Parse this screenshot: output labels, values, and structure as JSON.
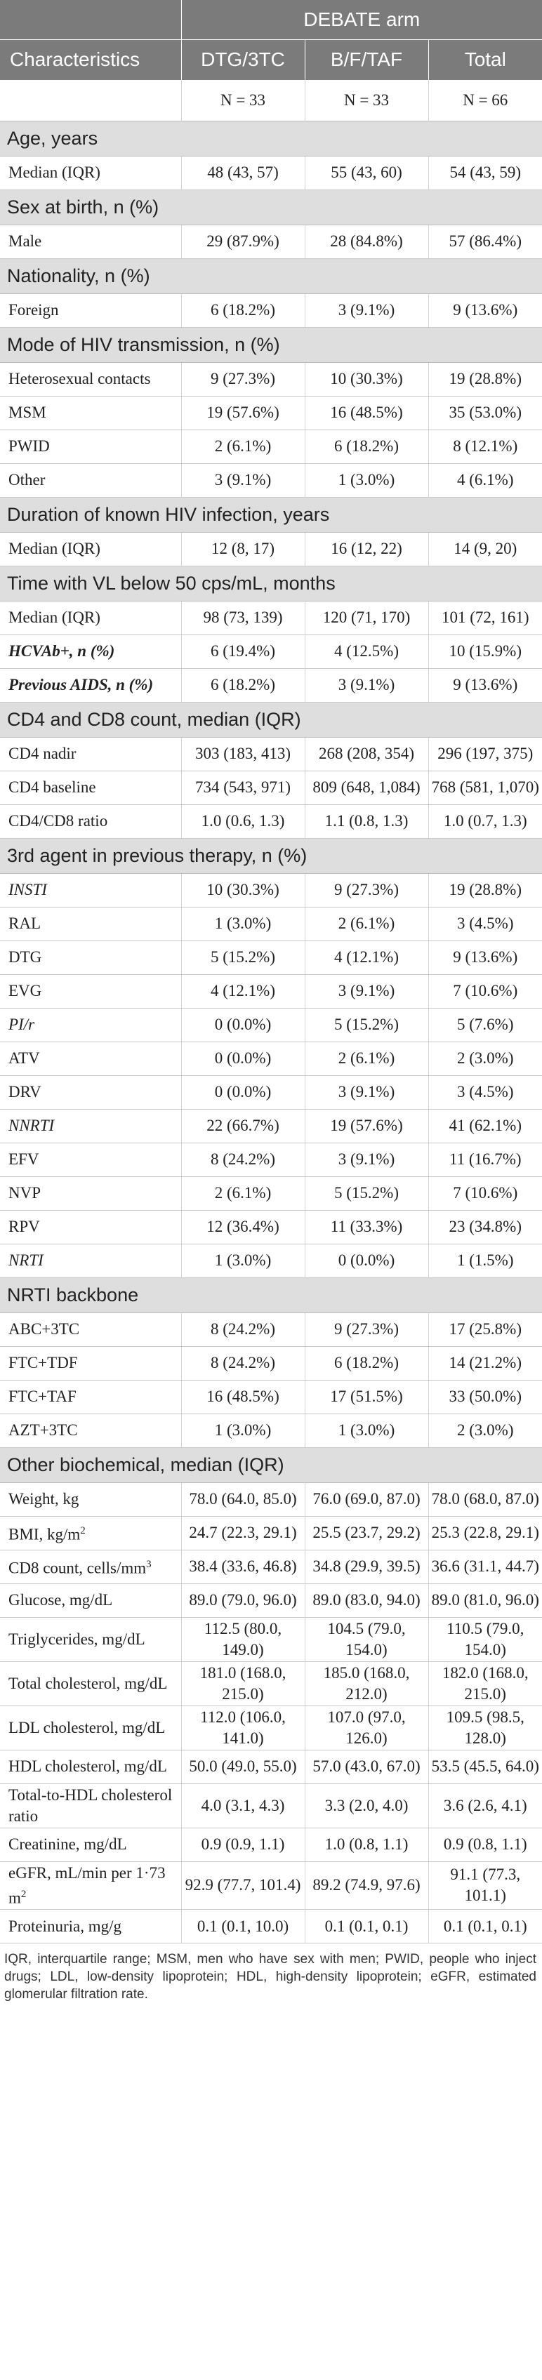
{
  "header": {
    "arm_label": "DEBATE arm",
    "col_characteristics": "Characteristics",
    "col_dtg": "DTG/3TC",
    "col_bf": "B/F/TAF",
    "col_total": "Total",
    "n_dtg": "N = 33",
    "n_bf": "N = 33",
    "n_total": "N = 66"
  },
  "sections": [
    {
      "title": "Age, years",
      "rows": [
        {
          "label": "Median (IQR)",
          "style": "normal",
          "v": [
            "48 (43, 57)",
            "55 (43, 60)",
            "54 (43, 59)"
          ]
        }
      ]
    },
    {
      "title": "Sex at birth, n (%)",
      "rows": [
        {
          "label": "Male",
          "style": "normal",
          "v": [
            "29 (87.9%)",
            "28 (84.8%)",
            "57 (86.4%)"
          ]
        }
      ]
    },
    {
      "title": "Nationality, n (%)",
      "rows": [
        {
          "label": "Foreign",
          "style": "normal",
          "v": [
            "6 (18.2%)",
            "3 (9.1%)",
            "9 (13.6%)"
          ]
        }
      ]
    },
    {
      "title": "Mode of HIV transmission, n (%)",
      "rows": [
        {
          "label": "Heterosexual contacts",
          "style": "normal",
          "v": [
            "9 (27.3%)",
            "10 (30.3%)",
            "19 (28.8%)"
          ]
        },
        {
          "label": "MSM",
          "style": "normal",
          "v": [
            "19 (57.6%)",
            "16 (48.5%)",
            "35 (53.0%)"
          ]
        },
        {
          "label": "PWID",
          "style": "normal",
          "v": [
            "2 (6.1%)",
            "6 (18.2%)",
            "8 (12.1%)"
          ]
        },
        {
          "label": "Other",
          "style": "normal",
          "v": [
            "3 (9.1%)",
            "1 (3.0%)",
            "4 (6.1%)"
          ]
        }
      ]
    },
    {
      "title": "Duration of known HIV infection, years",
      "rows": [
        {
          "label": "Median (IQR)",
          "style": "normal",
          "v": [
            "12 (8, 17)",
            "16 (12, 22)",
            "14 (9, 20)"
          ]
        }
      ]
    },
    {
      "title": "Time with VL below 50 cps/mL, months",
      "rows": [
        {
          "label": "Median (IQR)",
          "style": "normal",
          "v": [
            "98 (73, 139)",
            "120 (71, 170)",
            "101 (72, 161)"
          ]
        },
        {
          "label": "HCVAb+, n (%)",
          "style": "bi",
          "v": [
            "6 (19.4%)",
            "4 (12.5%)",
            "10 (15.9%)"
          ]
        },
        {
          "label": "Previous AIDS, n (%)",
          "style": "bi",
          "v": [
            "6 (18.2%)",
            "3 (9.1%)",
            "9 (13.6%)"
          ]
        }
      ]
    },
    {
      "title": "CD4 and CD8 count, median (IQR)",
      "rows": [
        {
          "label": "CD4 nadir",
          "style": "normal",
          "v": [
            "303 (183, 413)",
            "268 (208, 354)",
            "296 (197, 375)"
          ]
        },
        {
          "label": "CD4 baseline",
          "style": "normal",
          "v": [
            "734 (543, 971)",
            "809 (648, 1,084)",
            "768 (581, 1,070)"
          ]
        },
        {
          "label": "CD4/CD8 ratio",
          "style": "normal",
          "v": [
            "1.0 (0.6, 1.3)",
            "1.1 (0.8, 1.3)",
            "1.0 (0.7, 1.3)"
          ]
        }
      ]
    },
    {
      "title": "3rd agent in previous therapy, n (%)",
      "rows": [
        {
          "label": "INSTI",
          "style": "it",
          "v": [
            "10 (30.3%)",
            "9 (27.3%)",
            "19 (28.8%)"
          ]
        },
        {
          "label": "RAL",
          "style": "normal",
          "v": [
            "1 (3.0%)",
            "2 (6.1%)",
            "3 (4.5%)"
          ]
        },
        {
          "label": "DTG",
          "style": "normal",
          "v": [
            "5 (15.2%)",
            "4 (12.1%)",
            "9 (13.6%)"
          ]
        },
        {
          "label": "EVG",
          "style": "normal",
          "v": [
            "4 (12.1%)",
            "3 (9.1%)",
            "7 (10.6%)"
          ]
        },
        {
          "label": "PI/r",
          "style": "it",
          "v": [
            "0 (0.0%)",
            "5 (15.2%)",
            "5 (7.6%)"
          ]
        },
        {
          "label": "ATV",
          "style": "normal",
          "v": [
            "0 (0.0%)",
            "2 (6.1%)",
            "2 (3.0%)"
          ]
        },
        {
          "label": "DRV",
          "style": "normal",
          "v": [
            "0 (0.0%)",
            "3 (9.1%)",
            "3 (4.5%)"
          ]
        },
        {
          "label": "NNRTI",
          "style": "it",
          "v": [
            "22 (66.7%)",
            "19 (57.6%)",
            "41 (62.1%)"
          ]
        },
        {
          "label": "EFV",
          "style": "normal",
          "v": [
            "8 (24.2%)",
            "3 (9.1%)",
            "11 (16.7%)"
          ]
        },
        {
          "label": "NVP",
          "style": "normal",
          "v": [
            "2 (6.1%)",
            "5 (15.2%)",
            "7 (10.6%)"
          ]
        },
        {
          "label": "RPV",
          "style": "normal",
          "v": [
            "12 (36.4%)",
            "11 (33.3%)",
            "23 (34.8%)"
          ]
        },
        {
          "label": "NRTI",
          "style": "it",
          "v": [
            "1 (3.0%)",
            "0 (0.0%)",
            "1 (1.5%)"
          ]
        }
      ]
    },
    {
      "title": "NRTI backbone",
      "rows": [
        {
          "label": "ABC+3TC",
          "style": "normal",
          "v": [
            "8 (24.2%)",
            "9 (27.3%)",
            "17 (25.8%)"
          ]
        },
        {
          "label": "FTC+TDF",
          "style": "normal",
          "v": [
            "8 (24.2%)",
            "6 (18.2%)",
            "14 (21.2%)"
          ]
        },
        {
          "label": "FTC+TAF",
          "style": "normal",
          "v": [
            "16 (48.5%)",
            "17 (51.5%)",
            "33 (50.0%)"
          ]
        },
        {
          "label": "AZT+3TC",
          "style": "normal",
          "v": [
            "1 (3.0%)",
            "1 (3.0%)",
            "2 (3.0%)"
          ]
        }
      ]
    },
    {
      "title": "Other biochemical, median (IQR)",
      "rows": [
        {
          "label": "Weight, kg",
          "style": "normal",
          "v": [
            "78.0 (64.0, 85.0)",
            "76.0 (69.0, 87.0)",
            "78.0 (68.0, 87.0)"
          ]
        },
        {
          "label": "BMI, kg/m",
          "sup": "2",
          "style": "normal",
          "v": [
            "24.7 (22.3, 29.1)",
            "25.5 (23.7, 29.2)",
            "25.3 (22.8, 29.1)"
          ]
        },
        {
          "label": "CD8 count, cells/mm",
          "sup": "3",
          "style": "normal",
          "v": [
            "38.4 (33.6, 46.8)",
            "34.8 (29.9, 39.5)",
            "36.6 (31.1, 44.7)"
          ]
        },
        {
          "label": "Glucose, mg/dL",
          "style": "normal",
          "v": [
            "89.0 (79.0, 96.0)",
            "89.0 (83.0, 94.0)",
            "89.0 (81.0, 96.0)"
          ]
        },
        {
          "label": "Triglycerides, mg/dL",
          "style": "normal",
          "v": [
            "112.5 (80.0, 149.0)",
            "104.5 (79.0, 154.0)",
            "110.5 (79.0, 154.0)"
          ]
        },
        {
          "label": "Total cholesterol, mg/dL",
          "style": "normal",
          "v": [
            "181.0 (168.0, 215.0)",
            "185.0 (168.0, 212.0)",
            "182.0 (168.0, 215.0)"
          ]
        },
        {
          "label": "LDL cholesterol, mg/dL",
          "style": "normal",
          "v": [
            "112.0 (106.0, 141.0)",
            "107.0 (97.0, 126.0)",
            "109.5 (98.5, 128.0)"
          ]
        },
        {
          "label": "HDL cholesterol, mg/dL",
          "style": "normal",
          "v": [
            "50.0 (49.0, 55.0)",
            "57.0 (43.0, 67.0)",
            "53.5 (45.5, 64.0)"
          ]
        },
        {
          "label": "Total-to-HDL cholesterol ratio",
          "style": "normal",
          "v": [
            "4.0 (3.1, 4.3)",
            "3.3 (2.0, 4.0)",
            "3.6 (2.6, 4.1)"
          ]
        },
        {
          "label": "Creatinine, mg/dL",
          "style": "normal",
          "v": [
            "0.9 (0.9, 1.1)",
            "1.0 (0.8, 1.1)",
            "0.9 (0.8, 1.1)"
          ]
        },
        {
          "label": "eGFR, mL/min per 1·73 m",
          "sup": "2",
          "style": "normal",
          "v": [
            "92.9 (77.7, 101.4)",
            "89.2 (74.9, 97.6)",
            "91.1 (77.3, 101.1)"
          ]
        },
        {
          "label": "Proteinuria, mg/g",
          "style": "normal",
          "v": [
            "0.1 (0.1, 10.0)",
            "0.1 (0.1, 0.1)",
            "0.1 (0.1, 0.1)"
          ]
        }
      ]
    }
  ],
  "footnote": "IQR, interquartile range; MSM, men who have sex with men; PWID, people who inject drugs; LDL, low-density lipoprotein; HDL, high-density lipoprotein; eGFR, estimated glomerular filtration rate."
}
